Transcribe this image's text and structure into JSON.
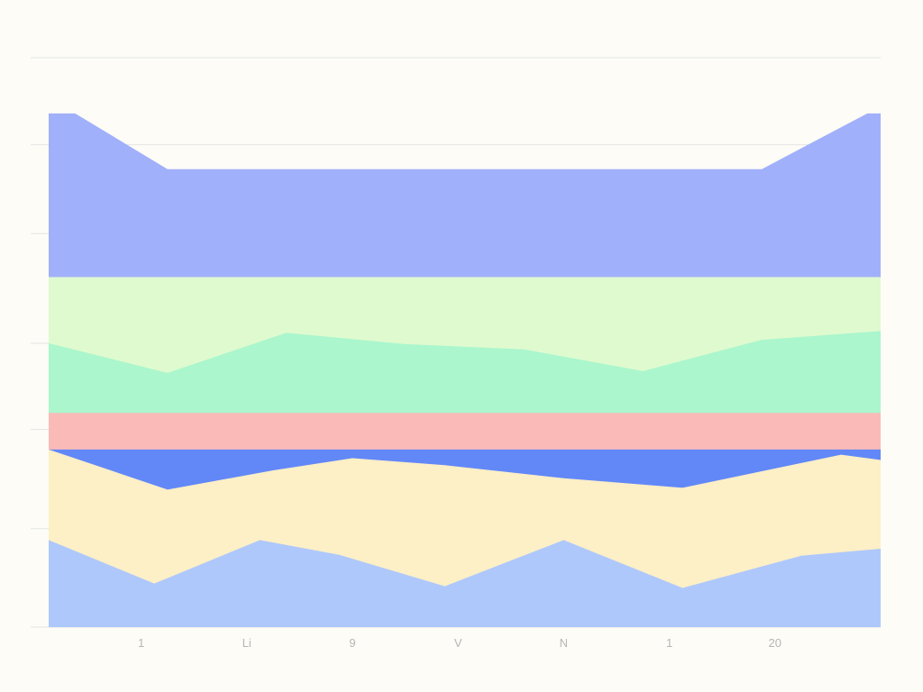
{
  "chart_data": {
    "type": "area",
    "x_tick_labels": [
      {
        "x": 1,
        "label": "1"
      },
      {
        "x": 2,
        "label": "Li"
      },
      {
        "x": 3,
        "label": "9"
      },
      {
        "x": 4,
        "label": "V"
      },
      {
        "x": 5,
        "label": "N"
      },
      {
        "x": 6,
        "label": "1"
      },
      {
        "x": 7,
        "label": "20"
      }
    ],
    "xlim": [
      0.125,
      8.0
    ],
    "ylim": [
      0,
      6.54
    ],
    "grid": true,
    "series": [
      {
        "color": "#aec8fb",
        "x": [
          0.125,
          1.125,
          2.125,
          2.875,
          3.875,
          5.0,
          6.125,
          7.25,
          8.0
        ],
        "y": [
          1.0,
          0.5,
          1.0,
          0.83,
          0.47,
          1.0,
          0.45,
          0.82,
          0.9
        ]
      },
      {
        "color": "#fdefc6",
        "x": [
          0.125,
          1.25,
          2.25,
          3.0,
          3.875,
          5.0,
          6.125,
          7.625,
          8.0
        ],
        "y": [
          2.04,
          1.58,
          1.8,
          1.94,
          1.86,
          1.71,
          1.6,
          1.98,
          1.92
        ]
      },
      {
        "color": "#6288f8",
        "x": [
          0.125,
          8.0
        ],
        "y": [
          2.04,
          2.04
        ]
      },
      {
        "color": "#fabab8",
        "x": [
          0.125,
          8.0
        ],
        "y": [
          2.46,
          2.46
        ]
      },
      {
        "color": "#abf6cd",
        "x": [
          0.125,
          1.25,
          2.375,
          3.5,
          4.625,
          5.75,
          6.875,
          8.0
        ],
        "y": [
          3.26,
          2.92,
          3.38,
          3.25,
          3.19,
          2.94,
          3.3,
          3.4
        ]
      },
      {
        "color": "#dffacf",
        "x": [
          0.125,
          8.0
        ],
        "y": [
          4.02,
          4.02
        ]
      },
      {
        "color": "#a1b0fa",
        "x": [
          0.125,
          0.375,
          1.25,
          2.375,
          3.5,
          4.625,
          5.75,
          6.875,
          7.875,
          8.0
        ],
        "y": [
          5.9,
          5.9,
          5.26,
          5.26,
          5.26,
          5.26,
          5.26,
          5.26,
          5.9,
          5.9
        ]
      }
    ]
  }
}
